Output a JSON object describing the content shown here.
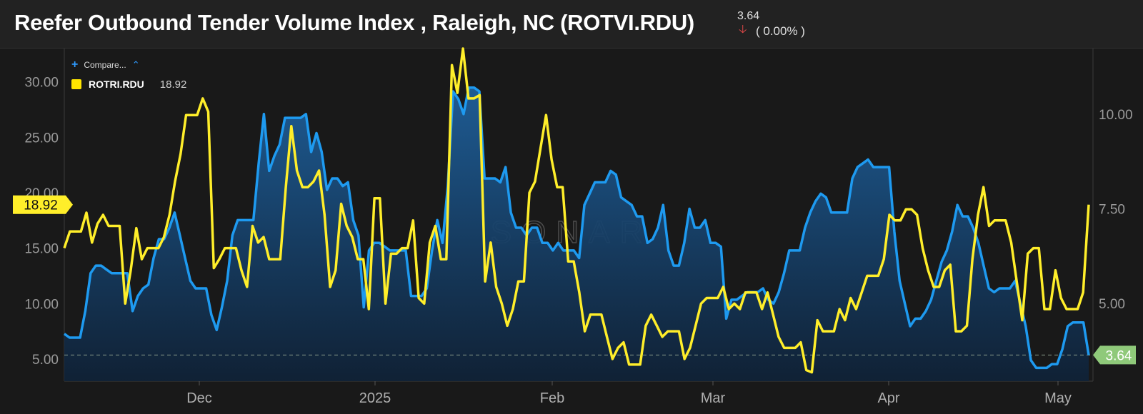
{
  "header": {
    "title": "Reefer Outbound Tender Volume Index , Raleigh, NC (ROTVI.RDU)",
    "value": "3.64",
    "change": "( 0.00% )",
    "change_icon": "arrow-down-icon"
  },
  "legend": {
    "compare_label": "Compare...",
    "series_name": "ROTRI.RDU",
    "series_value": "18.92"
  },
  "watermark": "SONAR",
  "colors": {
    "background": "#191919",
    "blue": "#1e9af0",
    "yellow": "#ffee2a",
    "green_badge": "#8fc97a",
    "down_arrow": "#e04848"
  },
  "chart_data": {
    "type": "line",
    "x_ticks": [
      "Dec",
      "2025",
      "Feb",
      "Mar",
      "Apr",
      "May"
    ],
    "left_axis": {
      "ticks": [
        "5.00",
        "10.00",
        "15.00",
        "20.00",
        "25.00",
        "30.00"
      ],
      "ylim": [
        3.0,
        33.0
      ]
    },
    "right_axis": {
      "ticks": [
        "5.00",
        "7.50",
        "10.00"
      ],
      "ylim": [
        2.95,
        11.73
      ]
    },
    "reference_value": 3.64,
    "badges": {
      "left": "18.92",
      "right": "3.64"
    },
    "series": [
      {
        "name": "ROTRI.RDU",
        "axis": "left",
        "color": "yellow",
        "values": [
          15.0,
          16.5,
          16.5,
          16.5,
          18.2,
          15.5,
          17.2,
          18.0,
          17.0,
          17.0,
          17.0,
          10.0,
          13.0,
          16.8,
          14.0,
          15.0,
          15.0,
          15.0,
          16.0,
          18.0,
          21.0,
          23.5,
          27.0,
          27.0,
          27.0,
          28.5,
          27.3,
          13.2,
          14.0,
          15.0,
          15.0,
          15.0,
          13.0,
          11.5,
          17.0,
          15.5,
          16.0,
          14.0,
          14.0,
          14.0,
          20.5,
          26.0,
          22.0,
          20.5,
          20.5,
          21.0,
          22.0,
          18.0,
          11.5,
          13.0,
          19.0,
          17.0,
          16.0,
          14.0,
          14.0,
          9.5,
          19.5,
          19.5,
          10.0,
          14.5,
          14.5,
          15.0,
          15.0,
          17.5,
          10.5,
          10.0,
          15.5,
          17.0,
          14.0,
          14.0,
          31.5,
          29.0,
          33.0,
          28.5,
          28.5,
          28.8,
          12.0,
          15.5,
          11.5,
          10.0,
          8.0,
          9.5,
          12.0,
          12.0,
          20.0,
          21.0,
          24.0,
          27.0,
          23.0,
          20.5,
          20.5,
          13.8,
          13.8,
          11.0,
          7.5,
          9.0,
          9.0,
          9.0,
          7.0,
          5.0,
          6.0,
          6.5,
          4.5,
          4.5,
          4.5,
          8.0,
          9.0,
          8.0,
          7.0,
          7.5,
          7.5,
          7.5,
          5.0,
          6.0,
          8.0,
          10.0,
          10.5,
          10.5,
          10.5,
          11.5,
          9.5,
          10.0,
          9.5,
          11.0,
          11.0,
          11.0,
          9.5,
          11.0,
          9.0,
          7.0,
          6.0,
          6.0,
          6.0,
          6.5,
          4.0,
          3.8,
          8.5,
          7.5,
          7.5,
          7.5,
          9.5,
          8.5,
          10.5,
          9.5,
          11.0,
          12.5,
          12.5,
          12.5,
          14.0,
          18.0,
          17.5,
          17.5,
          18.5,
          18.5,
          18.0,
          15.0,
          13.0,
          11.5,
          11.5,
          13.0,
          13.5,
          7.5,
          7.5,
          8.0,
          14.0,
          18.0,
          20.5,
          17.0,
          17.5,
          17.5,
          17.5,
          15.5,
          12.0,
          8.5,
          14.5,
          15.0,
          15.0,
          9.5,
          9.5,
          13.0,
          10.5,
          9.5,
          9.5,
          9.5,
          11.0,
          18.92
        ]
      },
      {
        "name": "ROTVI.RDU",
        "axis": "right",
        "color": "blue",
        "values": [
          4.2,
          4.1,
          4.1,
          4.1,
          4.8,
          5.8,
          6.0,
          6.0,
          5.9,
          5.8,
          5.8,
          5.8,
          5.8,
          4.8,
          5.2,
          5.4,
          5.5,
          6.2,
          6.7,
          6.7,
          7.0,
          7.4,
          6.8,
          6.2,
          5.6,
          5.4,
          5.4,
          5.4,
          4.7,
          4.3,
          4.9,
          5.6,
          6.8,
          7.2,
          7.2,
          7.2,
          7.2,
          8.7,
          10.0,
          8.5,
          8.9,
          9.2,
          9.9,
          9.9,
          9.9,
          9.9,
          10.0,
          9.0,
          9.5,
          9.0,
          8.0,
          8.3,
          8.3,
          8.1,
          8.2,
          7.2,
          6.8,
          4.9,
          6.4,
          6.6,
          6.6,
          6.5,
          6.4,
          6.4,
          6.4,
          6.4,
          5.2,
          5.2,
          5.2,
          5.4,
          6.4,
          7.2,
          6.6,
          8.1,
          10.6,
          10.4,
          10.0,
          10.7,
          10.7,
          10.6,
          8.3,
          8.3,
          8.3,
          8.2,
          8.6,
          7.4,
          7.0,
          7.0,
          6.8,
          7.0,
          7.0,
          6.6,
          6.6,
          6.4,
          6.6,
          6.4,
          6.4,
          6.4,
          6.2,
          7.6,
          7.9,
          8.2,
          8.2,
          8.2,
          8.5,
          8.4,
          7.8,
          7.7,
          7.6,
          7.3,
          7.3,
          6.6,
          6.7,
          7.0,
          7.6,
          6.4,
          6.0,
          6.0,
          6.6,
          7.5,
          7.0,
          7.0,
          7.2,
          6.6,
          6.6,
          6.5,
          4.6,
          5.1,
          5.1,
          5.2,
          5.3,
          5.3,
          5.3,
          5.4,
          5.1,
          5.0,
          5.3,
          5.8,
          6.4,
          6.4,
          6.4,
          7.0,
          7.4,
          7.7,
          7.9,
          7.8,
          7.4,
          7.4,
          7.4,
          7.4,
          8.3,
          8.6,
          8.7,
          8.8,
          8.6,
          8.6,
          8.6,
          8.6,
          6.9,
          5.6,
          5.0,
          4.4,
          4.6,
          4.6,
          4.8,
          5.1,
          5.6,
          6.1,
          6.4,
          6.9,
          7.6,
          7.3,
          7.3,
          7.0,
          6.6,
          6.0,
          5.4,
          5.3,
          5.4,
          5.4,
          5.4,
          5.6,
          5.0,
          4.4,
          3.5,
          3.3,
          3.3,
          3.3,
          3.4,
          3.4,
          3.8,
          4.4,
          4.5,
          4.5,
          4.5,
          3.64
        ]
      }
    ]
  }
}
